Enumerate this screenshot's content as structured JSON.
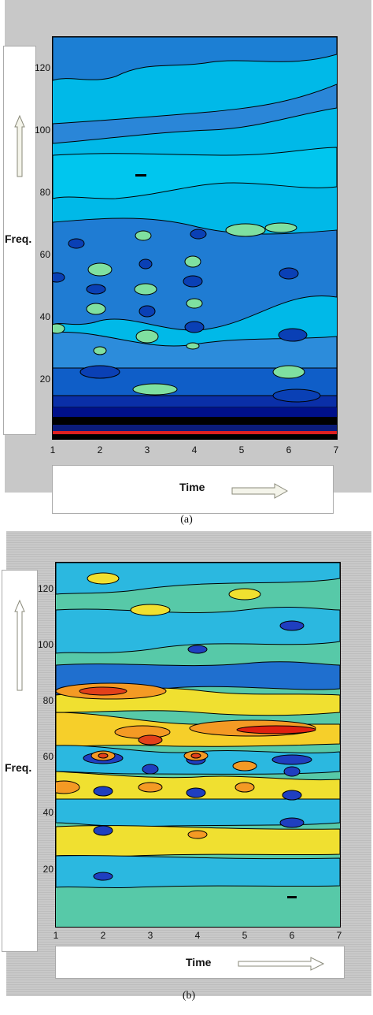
{
  "figure": {
    "caption_a": "(a)",
    "caption_b": "(b)",
    "footnote": ""
  },
  "chart_data": [
    {
      "type": "heatmap",
      "panel": "a",
      "title": "",
      "xlabel": "Time",
      "ylabel": "Freq.",
      "xlim": [
        1,
        7
      ],
      "ylim": [
        0,
        128
      ],
      "xticks": [
        "1",
        "2",
        "3",
        "4",
        "5",
        "6",
        "7"
      ],
      "yticks": [
        "20",
        "40",
        "60",
        "80",
        "100",
        "120"
      ],
      "colormap": "jet",
      "contour_lines": true,
      "approx_levels_by_freq": [
        {
          "freq": 2,
          "level": "red/black"
        },
        {
          "freq": 10,
          "level": "dark blue"
        },
        {
          "freq": 20,
          "level": "blue"
        },
        {
          "freq": 40,
          "level": "cyan-blue"
        },
        {
          "freq": 60,
          "level": "blue"
        },
        {
          "freq": 80,
          "level": "cyan"
        },
        {
          "freq": 110,
          "level": "cyan"
        },
        {
          "freq": 125,
          "level": "blue"
        }
      ]
    },
    {
      "type": "heatmap",
      "panel": "b",
      "title": "",
      "xlabel": "Time",
      "ylabel": "Freq.",
      "xlim": [
        1,
        7
      ],
      "ylim": [
        0,
        128
      ],
      "xticks": [
        "1",
        "2",
        "3",
        "4",
        "5",
        "6",
        "7"
      ],
      "yticks": [
        "20",
        "40",
        "60",
        "80",
        "100",
        "120"
      ],
      "colormap": "jet",
      "contour_lines": true,
      "approx_levels_by_freq": [
        {
          "freq": 10,
          "level": "green"
        },
        {
          "freq": 30,
          "level": "cyan/yellow"
        },
        {
          "freq": 50,
          "level": "yellow/blue"
        },
        {
          "freq": 60,
          "level": "orange/blue"
        },
        {
          "freq": 70,
          "level": "red/yellow"
        },
        {
          "freq": 84,
          "level": "orange"
        },
        {
          "freq": 100,
          "level": "yellow/cyan"
        },
        {
          "freq": 120,
          "level": "yellow/green"
        }
      ]
    }
  ]
}
